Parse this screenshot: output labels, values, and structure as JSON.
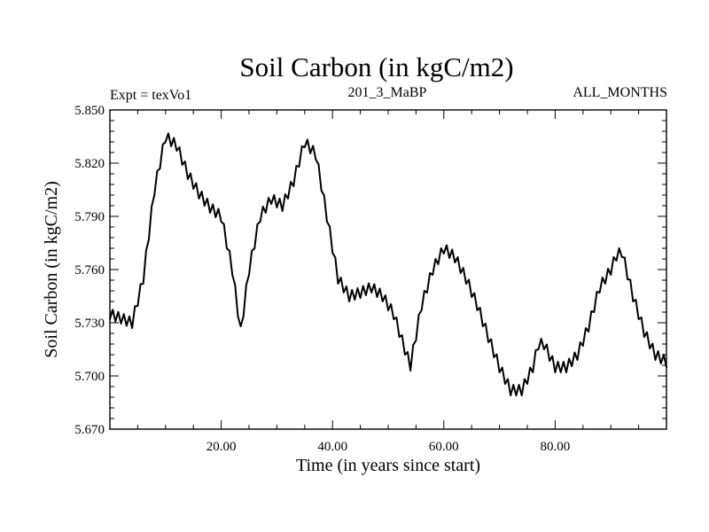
{
  "chart_data": {
    "type": "line",
    "title": "Soil Carbon (in kgC/m2)",
    "left_subtitle": "Expt = texVo1",
    "center_subtitle": "201_3_MaBP",
    "right_subtitle": "ALL_MONTHS",
    "xlabel": "Time (in years since start)",
    "ylabel": "Soil Carbon (in kgC/m2)",
    "xlim": [
      0,
      100
    ],
    "ylim": [
      5.67,
      5.85
    ],
    "x_ticks": [
      20,
      40,
      60,
      80
    ],
    "x_tick_labels": [
      "20.00",
      "40.00",
      "60.00",
      "80.00"
    ],
    "y_ticks": [
      5.67,
      5.7,
      5.73,
      5.76,
      5.79,
      5.82,
      5.85
    ],
    "y_tick_labels": [
      "5.670",
      "5.700",
      "5.730",
      "5.760",
      "5.790",
      "5.820",
      "5.850"
    ],
    "x_minor_step": 5,
    "y_minor_step": 0.006,
    "annual_cycle_amplitude": 0.006,
    "series": [
      {
        "name": "Soil Carbon",
        "color": "#000000",
        "x": [
          0,
          4,
          6,
          8,
          10,
          12,
          14,
          16,
          18,
          20,
          22,
          23.5,
          25,
          27,
          29,
          31,
          33,
          35,
          37,
          39,
          41,
          43,
          45,
          47,
          49,
          51,
          53,
          54,
          56,
          58,
          60,
          62,
          64,
          66,
          68,
          70,
          72,
          74,
          76,
          77,
          78,
          80,
          82,
          84,
          86,
          88,
          90,
          91,
          92,
          94,
          96,
          98,
          100
        ],
        "values": [
          5.735,
          5.73,
          5.755,
          5.805,
          5.835,
          5.83,
          5.814,
          5.803,
          5.795,
          5.79,
          5.76,
          5.725,
          5.76,
          5.79,
          5.8,
          5.796,
          5.81,
          5.832,
          5.825,
          5.79,
          5.755,
          5.745,
          5.747,
          5.75,
          5.745,
          5.735,
          5.715,
          5.706,
          5.74,
          5.76,
          5.772,
          5.767,
          5.755,
          5.74,
          5.722,
          5.705,
          5.692,
          5.692,
          5.705,
          5.718,
          5.718,
          5.705,
          5.705,
          5.712,
          5.728,
          5.75,
          5.76,
          5.768,
          5.77,
          5.745,
          5.725,
          5.712,
          5.708
        ]
      }
    ]
  }
}
